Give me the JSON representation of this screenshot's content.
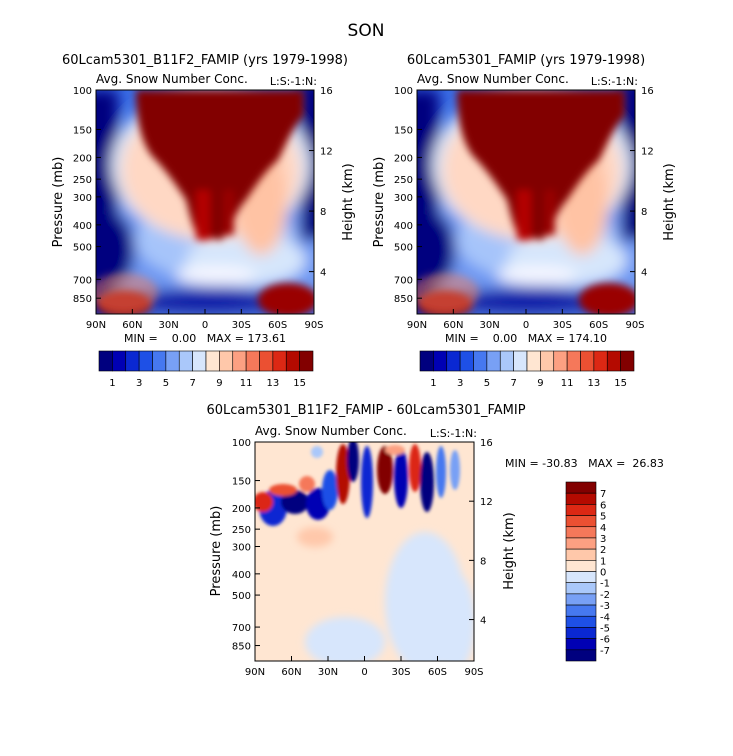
{
  "figure_title": "SON",
  "chart_data": [
    {
      "type": "heatmap",
      "title": "60Lcam5301_B11F2_FAMIP (yrs 1979-1998)",
      "subtitle": "Avg. Snow Number Conc.",
      "subtitle_right": "L:S:-1:N:",
      "ylabel": "Pressure (mb)",
      "ylabel_right": "Height (km)",
      "xticks": [
        "90N",
        "60N",
        "30N",
        "0",
        "30S",
        "60S",
        "90S"
      ],
      "yticks": [
        "100",
        "150",
        "200",
        "250",
        "300",
        "400",
        "500",
        "700",
        "850"
      ],
      "yticks_right": [
        "16",
        "12",
        "8",
        "4"
      ],
      "stats": "MIN =    0.00   MAX = 173.61",
      "colorbar_labels": [
        "1",
        "3",
        "5",
        "7",
        "9",
        "11",
        "13",
        "15"
      ],
      "colorbar_colors": [
        "#00007f",
        "#0000b4",
        "#0a28d2",
        "#1e50e6",
        "#4678f0",
        "#78a0f5",
        "#aac8fa",
        "#d7e6fc",
        "#ffe6d2",
        "#ffc8aa",
        "#fca082",
        "#f5785a",
        "#eb5032",
        "#dc2814",
        "#b40a00",
        "#820000"
      ]
    },
    {
      "type": "heatmap",
      "title": "60Lcam5301_FAMIP (yrs 1979-1998)",
      "subtitle": "Avg. Snow Number Conc.",
      "subtitle_right": "L:S:-1:N:",
      "ylabel": "Pressure (mb)",
      "ylabel_right": "Height (km)",
      "xticks": [
        "90N",
        "60N",
        "30N",
        "0",
        "30S",
        "60S",
        "90S"
      ],
      "yticks": [
        "100",
        "150",
        "200",
        "250",
        "300",
        "400",
        "500",
        "700",
        "850"
      ],
      "yticks_right": [
        "16",
        "12",
        "8",
        "4"
      ],
      "stats": "MIN =    0.00   MAX = 174.10",
      "colorbar_labels": [
        "1",
        "3",
        "5",
        "7",
        "9",
        "11",
        "13",
        "15"
      ],
      "colorbar_colors": [
        "#00007f",
        "#0000b4",
        "#0a28d2",
        "#1e50e6",
        "#4678f0",
        "#78a0f5",
        "#aac8fa",
        "#d7e6fc",
        "#ffe6d2",
        "#ffc8aa",
        "#fca082",
        "#f5785a",
        "#eb5032",
        "#dc2814",
        "#b40a00",
        "#820000"
      ]
    },
    {
      "type": "heatmap",
      "title": "60Lcam5301_B11F2_FAMIP - 60Lcam5301_FAMIP",
      "subtitle": "Avg. Snow Number Conc.",
      "subtitle_right": "L:S:-1:N:",
      "ylabel": "Pressure (mb)",
      "ylabel_right": "Height (km)",
      "xticks": [
        "90N",
        "60N",
        "30N",
        "0",
        "30S",
        "60S",
        "90S"
      ],
      "yticks": [
        "100",
        "150",
        "200",
        "250",
        "300",
        "400",
        "500",
        "700",
        "850"
      ],
      "yticks_right": [
        "16",
        "12",
        "8",
        "4"
      ],
      "stats": "MIN = -30.83   MAX =  26.83",
      "colorbar_labels": [
        "7",
        "6",
        "5",
        "4",
        "3",
        "2",
        "1",
        "0",
        "-1",
        "-2",
        "-3",
        "-4",
        "-5",
        "-6",
        "-7"
      ],
      "colorbar_colors": [
        "#820000",
        "#b40a00",
        "#dc2814",
        "#eb5032",
        "#f5785a",
        "#fca082",
        "#ffc8aa",
        "#ffe6d2",
        "#d7e6fc",
        "#aac8fa",
        "#78a0f5",
        "#4678f0",
        "#1e50e6",
        "#0a28d2",
        "#0000b4",
        "#00007f"
      ]
    }
  ]
}
